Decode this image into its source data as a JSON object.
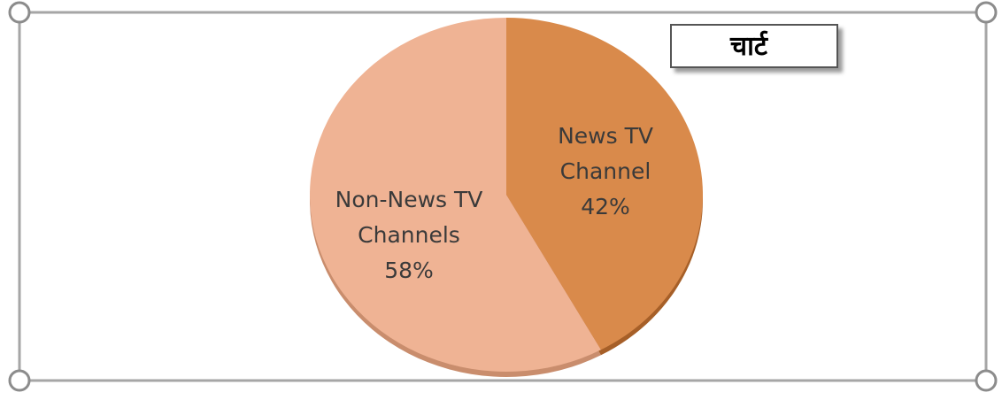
{
  "tag": {
    "label": "चार्ट"
  },
  "colors": {
    "frame": "#a6a6a6",
    "handle_fill": "#ffffff",
    "handle_stroke": "#8c8c8c",
    "slice_news": "#d98a4b",
    "slice_news_shadow": "#a65f28",
    "slice_nonnews": "#efb394",
    "slice_nonnews_shadow": "#c98d6d"
  },
  "chart_data": {
    "type": "pie",
    "slices": [
      {
        "label_lines": [
          "News TV",
          "Channel"
        ],
        "value": 42,
        "display": "42%"
      },
      {
        "label_lines": [
          "Non-News TV",
          "Channels"
        ],
        "value": 58,
        "display": "58%"
      }
    ],
    "start": "12 o'clock",
    "direction": "clockwise",
    "style": "3d-tilted",
    "legend": "none"
  }
}
